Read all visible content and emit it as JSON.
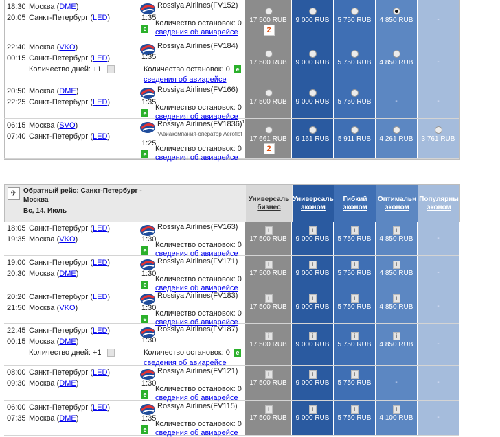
{
  "outbound": [
    {
      "dep": "18:30",
      "arr": "20:05",
      "from": "Москва",
      "from_code": "DME",
      "to": "Санкт-Петербург",
      "to_code": "LED",
      "airline": "Rossiya Airlines(FV152)",
      "duration": "1:35",
      "stops": "Количество остановок: 0",
      "details": "сведения об авиарейсе",
      "prices": [
        "17 500 RUB",
        "9 000 RUB",
        "5 750 RUB",
        "4 850 RUB",
        "-"
      ],
      "selected": 3,
      "badge": "2"
    },
    {
      "dep": "22:40",
      "arr": "00:15",
      "from": "Москва",
      "from_code": "VKO",
      "to": "Санкт-Петербург",
      "to_code": "LED",
      "airline": "Rossiya Airlines(FV184)",
      "duration": "1:35",
      "stops": "Количество остановок: 0",
      "details": "сведения об авиарейсе",
      "days": "Количество дней: +1",
      "prices": [
        "17 500 RUB",
        "9 000 RUB",
        "5 750 RUB",
        "4 850 RUB",
        "-"
      ]
    },
    {
      "dep": "20:50",
      "arr": "22:25",
      "from": "Москва",
      "from_code": "DME",
      "to": "Санкт-Петербург",
      "to_code": "LED",
      "airline": "Rossiya Airlines(FV166)",
      "duration": "1:35",
      "stops": "Количество остановок: 0",
      "details": "сведения об авиарейсе",
      "prices": [
        "17 500 RUB",
        "9 000 RUB",
        "5 750 RUB",
        "-",
        "-"
      ]
    },
    {
      "dep": "06:15",
      "arr": "07:40",
      "from": "Москва",
      "from_code": "SVO",
      "to": "Санкт-Петербург",
      "to_code": "LED",
      "airline": "Rossiya Airlines(FV1836)",
      "sup": "1",
      "operator": "¹Авиакомпания-оператор Aeroflot",
      "duration": "1:25",
      "stops": "Количество остановок: 0",
      "details": "сведения об авиарейсе",
      "prices": [
        "17 661 RUB",
        "9 161 RUB",
        "5 911 RUB",
        "4 261 RUB",
        "3 761 RUB"
      ],
      "badge": "2"
    }
  ],
  "return_header": {
    "title": "Обратный рейс: Санкт-Петербург - Москва",
    "date": "Вс, 14. Июль",
    "columns": [
      "Универсальный бизнес",
      "Универсальный эконом",
      "Гибкий эконом",
      "Оптимальный эконом",
      "Популярный эконом"
    ],
    "columns_short": [
      [
        "Универсаль",
        "бизнес"
      ],
      [
        "Универсаль",
        "эконом"
      ],
      [
        "Гибкий",
        "эконом"
      ],
      [
        "Оптимальн",
        "эконом"
      ],
      [
        "Популярны",
        "эконом"
      ]
    ]
  },
  "return": [
    {
      "dep": "18:05",
      "arr": "19:35",
      "from": "Санкт-Петербург",
      "from_code": "LED",
      "to": "Москва",
      "to_code": "VKO",
      "airline": "Rossiya Airlines(FV163)",
      "duration": "1:30",
      "stops": "Количество остановок: 0",
      "details": "сведения об авиарейсе",
      "prices": [
        "17 500 RUB",
        "9 000 RUB",
        "5 750 RUB",
        "4 850 RUB",
        "-"
      ]
    },
    {
      "dep": "19:00",
      "arr": "20:30",
      "from": "Санкт-Петербург",
      "from_code": "LED",
      "to": "Москва",
      "to_code": "DME",
      "airline": "Rossiya Airlines(FV171)",
      "duration": "1:30",
      "stops": "Количество остановок: 0",
      "details": "сведения об авиарейсе",
      "prices": [
        "17 500 RUB",
        "9 000 RUB",
        "5 750 RUB",
        "4 850 RUB",
        "-"
      ]
    },
    {
      "dep": "20:20",
      "arr": "21:50",
      "from": "Санкт-Петербург",
      "from_code": "LED",
      "to": "Москва",
      "to_code": "VKO",
      "airline": "Rossiya Airlines(FV183)",
      "duration": "1:30",
      "stops": "Количество остановок: 0",
      "details": "сведения об авиарейсе",
      "prices": [
        "17 500 RUB",
        "9 000 RUB",
        "5 750 RUB",
        "4 850 RUB",
        "-"
      ]
    },
    {
      "dep": "22:45",
      "arr": "00:15",
      "from": "Санкт-Петербург",
      "from_code": "LED",
      "to": "Москва",
      "to_code": "DME",
      "airline": "Rossiya Airlines(FV187)",
      "duration": "1:30",
      "stops": "Количество остановок: 0",
      "details": "сведения об авиарейсе",
      "days": "Количество дней: +1",
      "prices": [
        "17 500 RUB",
        "9 000 RUB",
        "5 750 RUB",
        "4 850 RUB",
        "-"
      ]
    },
    {
      "dep": "08:00",
      "arr": "09:30",
      "from": "Санкт-Петербург",
      "from_code": "LED",
      "to": "Москва",
      "to_code": "DME",
      "airline": "Rossiya Airlines(FV121)",
      "duration": "1:30",
      "stops": "Количество остановок: 0",
      "details": "сведения об авиарейсе",
      "prices": [
        "17 500 RUB",
        "9 000 RUB",
        "5 750 RUB",
        "-",
        "-"
      ]
    },
    {
      "dep": "06:00",
      "arr": "07:35",
      "from": "Санкт-Петербург",
      "from_code": "LED",
      "to": "Москва",
      "to_code": "DME",
      "airline": "Rossiya Airlines(FV115)",
      "duration": "1:35",
      "stops": "Количество остановок: 0",
      "details": "сведения об авиарейсе",
      "prices": [
        "17 500 RUB",
        "9 000 RUB",
        "5 750 RUB",
        "4 100 RUB",
        "-"
      ]
    }
  ]
}
